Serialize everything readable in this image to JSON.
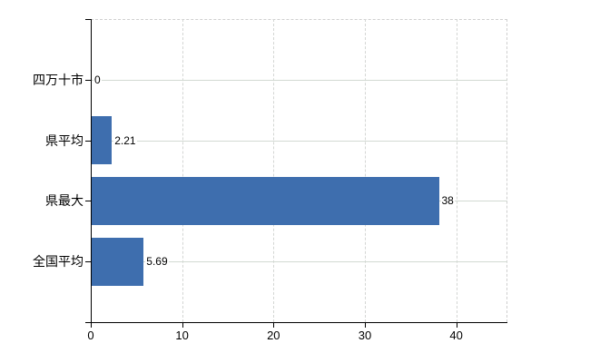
{
  "chart_data": {
    "type": "bar",
    "orientation": "horizontal",
    "title": "",
    "categories": [
      "四万十市",
      "県平均",
      "県最大",
      "全国平均"
    ],
    "values": [
      0,
      2.21,
      38,
      5.69
    ],
    "data_labels": [
      "0",
      "2.21",
      "38",
      "5.69"
    ],
    "x_ticks": [
      0,
      10,
      20,
      30,
      40
    ],
    "x_tick_labels": [
      "0",
      "10",
      "20",
      "30",
      "40"
    ],
    "xlim": [
      0,
      45.6
    ],
    "grid": true,
    "legend_position": "none",
    "colors": {
      "bar": "#3e6eae",
      "h_gridline": "#d3dad3",
      "v_gridline": "#d4d6d4",
      "plot_border": "#cfcfcf",
      "axis": "#000000",
      "text": "#000000",
      "background": "#ffffff"
    }
  }
}
